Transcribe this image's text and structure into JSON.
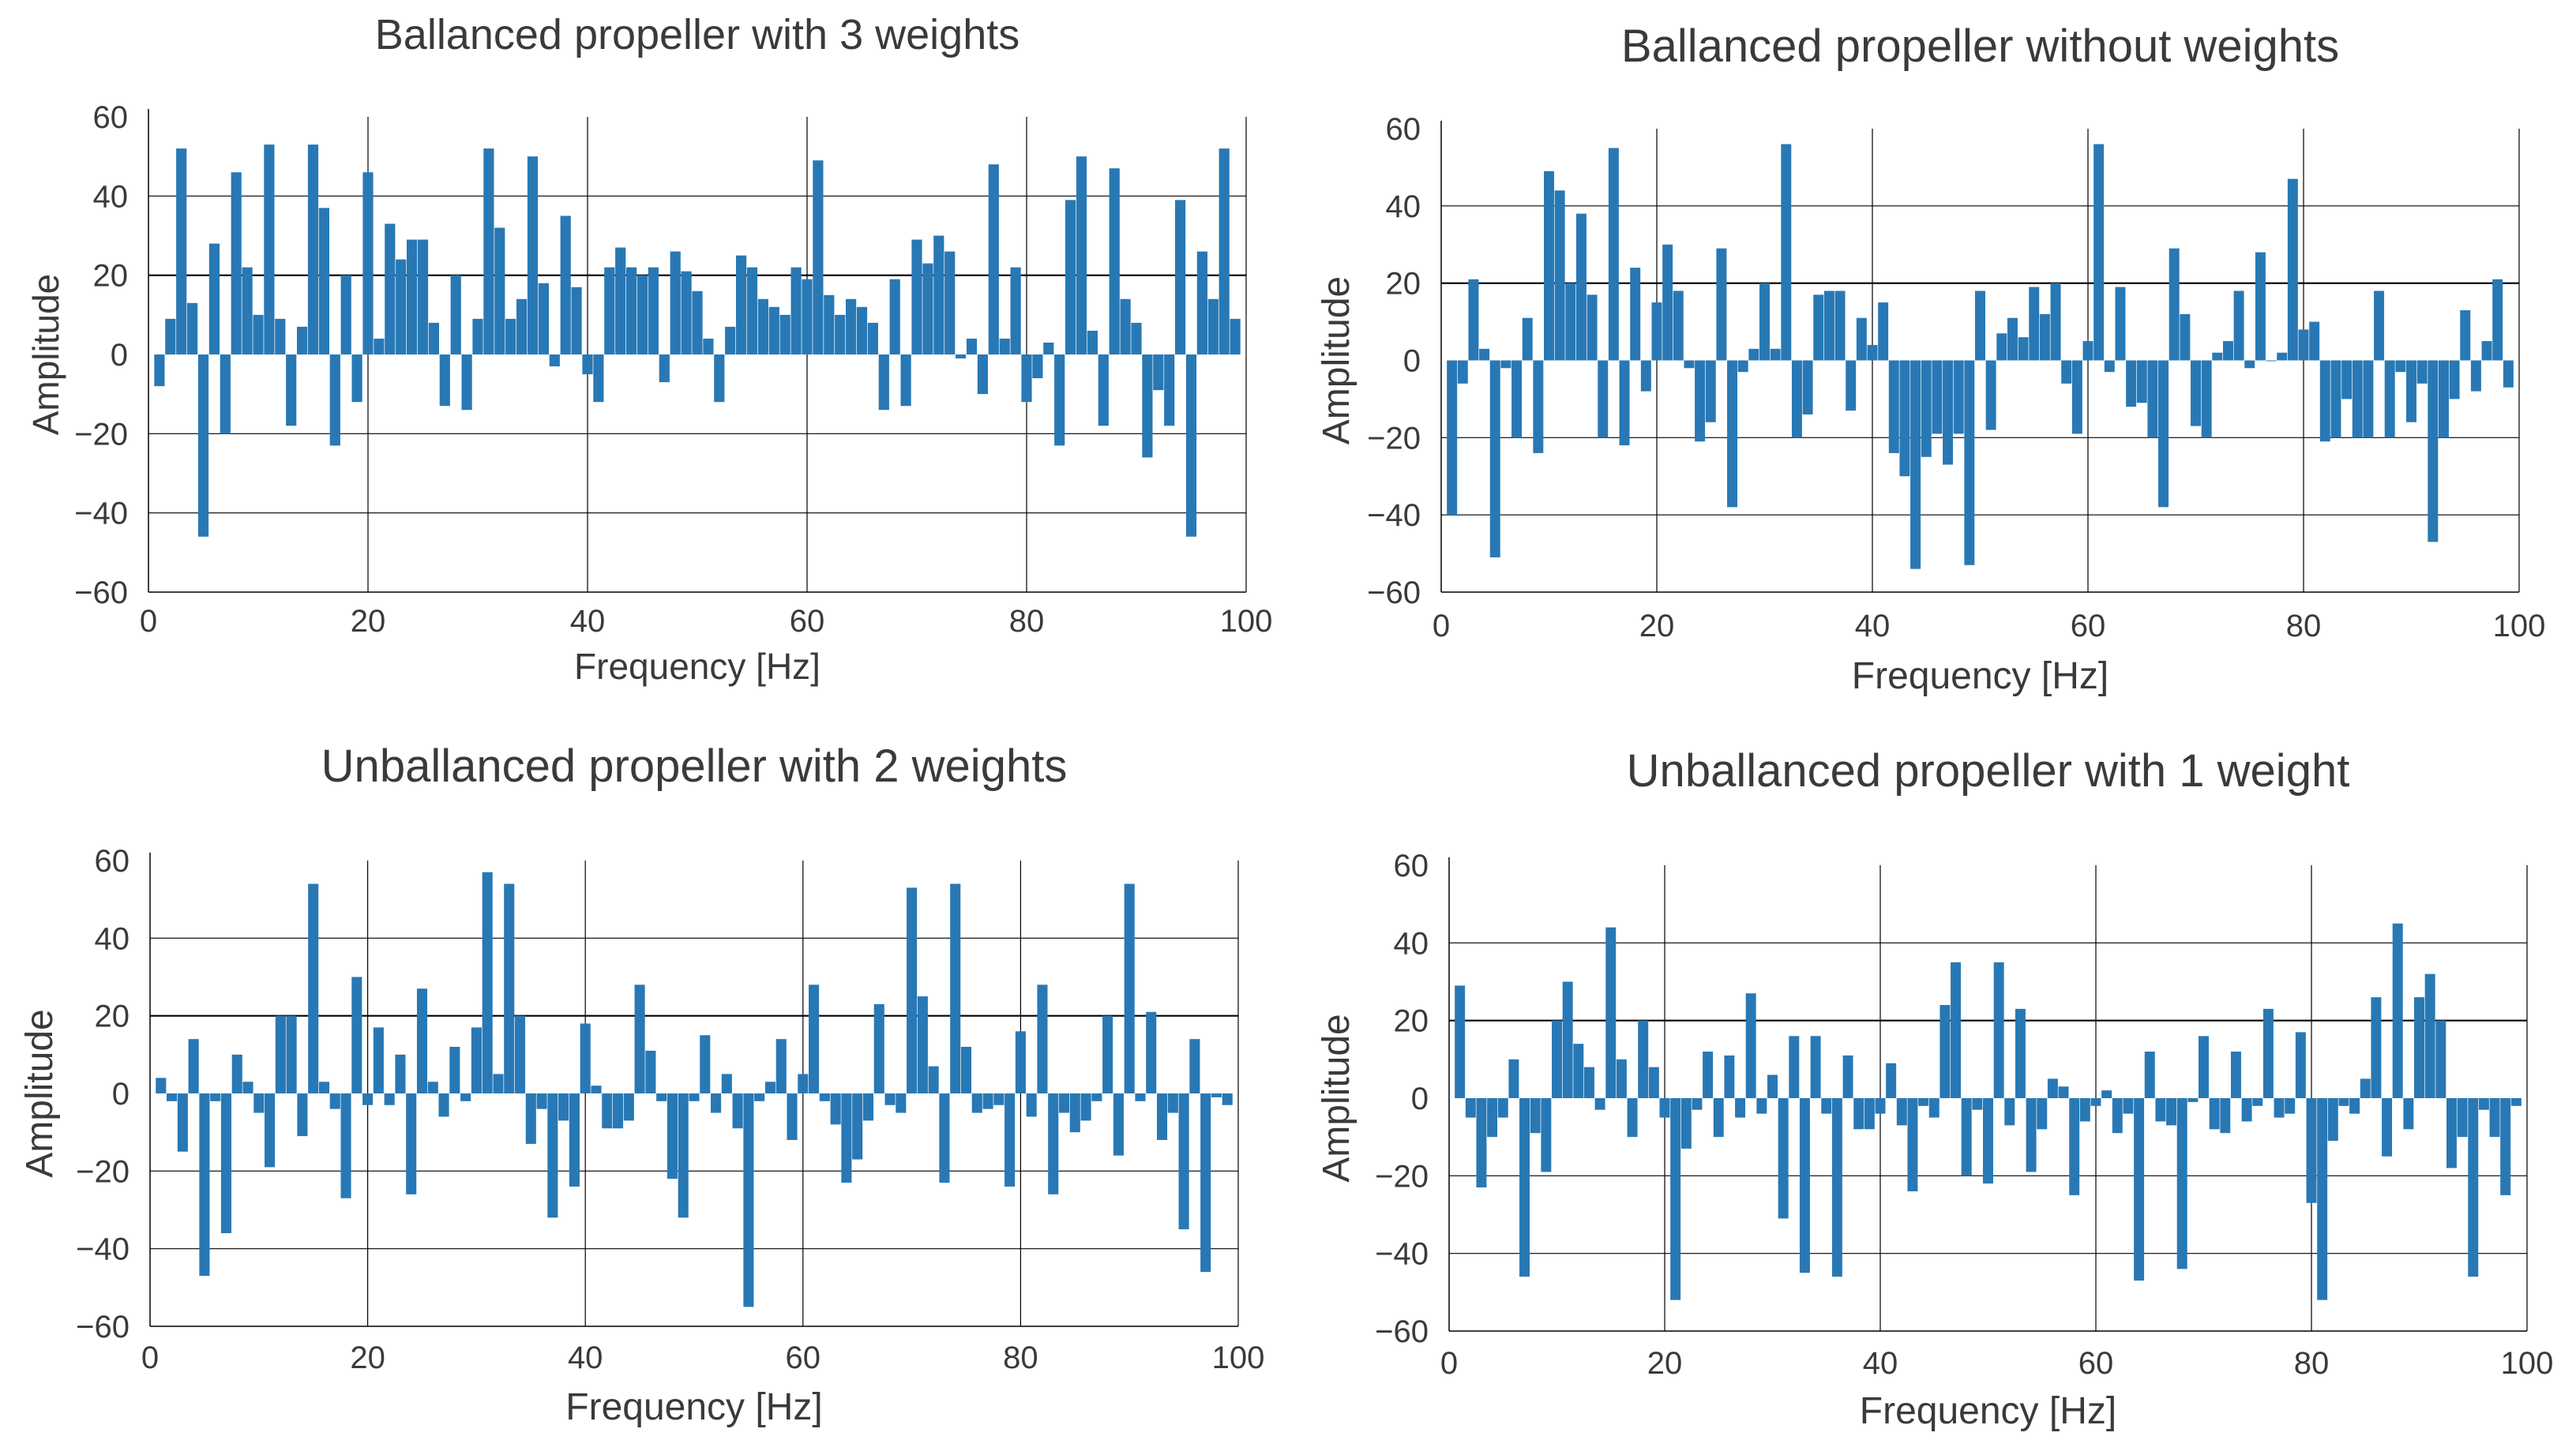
{
  "figure": {
    "bar_color": "#2878b5",
    "grid_color": "#000000",
    "text_color": "#3a3a3a"
  },
  "chart_data": [
    {
      "type": "bar",
      "title": "Ballanced propeller with 3 weights",
      "xlabel": "Frequency [Hz]",
      "ylabel": "Amplitude",
      "xlim": [
        0,
        100
      ],
      "ylim": [
        -60,
        60
      ],
      "xticks": [
        0,
        20,
        40,
        60,
        80,
        100
      ],
      "yticks": [
        -60,
        -40,
        -20,
        0,
        20,
        40,
        60
      ],
      "grid": "x and y (sparse)",
      "x": [
        1,
        2,
        3,
        4,
        5,
        6,
        7,
        8,
        9,
        10,
        11,
        12,
        13,
        14,
        15,
        16,
        17,
        18,
        19,
        20,
        21,
        22,
        23,
        24,
        25,
        26,
        27,
        28,
        29,
        30,
        31,
        32,
        33,
        34,
        35,
        36,
        37,
        38,
        39,
        40,
        41,
        42,
        43,
        44,
        45,
        46,
        47,
        48,
        49,
        50,
        51,
        52,
        53,
        54,
        55,
        56,
        57,
        58,
        59,
        60,
        61,
        62,
        63,
        64,
        65,
        66,
        67,
        68,
        69,
        70,
        71,
        72,
        73,
        74,
        75,
        76,
        77,
        78,
        79,
        80,
        81,
        82,
        83,
        84,
        85,
        86,
        87,
        88,
        89,
        90,
        91,
        92,
        93,
        94,
        95,
        96,
        97,
        98,
        99
      ],
      "values": [
        -8,
        9,
        52,
        13,
        -46,
        28,
        -20,
        46,
        22,
        10,
        53,
        9,
        -18,
        7,
        53,
        37,
        -23,
        20,
        -12,
        46,
        4,
        33,
        24,
        29,
        29,
        8,
        -13,
        20,
        -14,
        9,
        52,
        32,
        9,
        14,
        50,
        18,
        -3,
        35,
        17,
        -5,
        -12,
        22,
        27,
        22,
        20,
        22,
        -7,
        26,
        21,
        16,
        4,
        -12,
        7,
        25,
        22,
        14,
        12,
        10,
        22,
        19,
        49,
        15,
        10,
        14,
        12,
        8,
        -14,
        19,
        -13,
        29,
        23,
        30,
        26,
        -1,
        4,
        -10,
        48,
        4,
        22,
        -12,
        -6,
        3,
        -23,
        39,
        50,
        6,
        -18,
        47,
        14,
        8,
        -26,
        -9,
        -18,
        39,
        -46,
        26,
        14,
        52,
        9
      ]
    },
    {
      "type": "bar",
      "title": "Ballanced propeller without weights",
      "xlabel": "Frequency [Hz]",
      "ylabel": "Amplitude",
      "xlim": [
        0,
        100
      ],
      "ylim": [
        -60,
        60
      ],
      "xticks": [
        0,
        20,
        40,
        60,
        80,
        100
      ],
      "yticks": [
        -60,
        -40,
        -20,
        0,
        20,
        40,
        60
      ],
      "grid": "x and y (sparse)",
      "x": [
        1,
        2,
        3,
        4,
        5,
        6,
        7,
        8,
        9,
        10,
        11,
        12,
        13,
        14,
        15,
        16,
        17,
        18,
        19,
        20,
        21,
        22,
        23,
        24,
        25,
        26,
        27,
        28,
        29,
        30,
        31,
        32,
        33,
        34,
        35,
        36,
        37,
        38,
        39,
        40,
        41,
        42,
        43,
        44,
        45,
        46,
        47,
        48,
        49,
        50,
        51,
        52,
        53,
        54,
        55,
        56,
        57,
        58,
        59,
        60,
        61,
        62,
        63,
        64,
        65,
        66,
        67,
        68,
        69,
        70,
        71,
        72,
        73,
        74,
        75,
        76,
        77,
        78,
        79,
        80,
        81,
        82,
        83,
        84,
        85,
        86,
        87,
        88,
        89,
        90,
        91,
        92,
        93,
        94,
        95,
        96,
        97,
        98,
        99
      ],
      "values": [
        -40,
        -6,
        21,
        3,
        -51,
        -2,
        -20,
        11,
        -24,
        49,
        44,
        20,
        38,
        17,
        -20,
        55,
        -22,
        24,
        -8,
        15,
        30,
        18,
        -2,
        -21,
        -16,
        29,
        -38,
        -3,
        3,
        20,
        3,
        56,
        -20,
        -14,
        17,
        18,
        18,
        -13,
        11,
        4,
        15,
        -24,
        -30,
        -54,
        -25,
        -19,
        -27,
        -19,
        -53,
        18,
        -18,
        7,
        11,
        6,
        19,
        12,
        20,
        -6,
        -19,
        5,
        56,
        -3,
        19,
        -12,
        -11,
        -20,
        -38,
        29,
        12,
        -17,
        -20,
        2,
        5,
        18,
        -2,
        28,
        0,
        2,
        47,
        8,
        10,
        -21,
        -20,
        -10,
        -20,
        -20,
        18,
        -20,
        -3,
        -16,
        -6,
        -47,
        -20,
        -10,
        13,
        -8,
        5,
        21,
        -7
      ]
    },
    {
      "type": "bar",
      "title": "Unballanced propeller with 2 weights",
      "xlabel": "Frequency [Hz]",
      "ylabel": "Amplitude",
      "xlim": [
        0,
        100
      ],
      "ylim": [
        -60,
        60
      ],
      "xticks": [
        0,
        20,
        40,
        60,
        80,
        100
      ],
      "yticks": [
        -60,
        -40,
        -20,
        0,
        20,
        40,
        60
      ],
      "grid": "x and y (sparse)",
      "x": [
        1,
        2,
        3,
        4,
        5,
        6,
        7,
        8,
        9,
        10,
        11,
        12,
        13,
        14,
        15,
        16,
        17,
        18,
        19,
        20,
        21,
        22,
        23,
        24,
        25,
        26,
        27,
        28,
        29,
        30,
        31,
        32,
        33,
        34,
        35,
        36,
        37,
        38,
        39,
        40,
        41,
        42,
        43,
        44,
        45,
        46,
        47,
        48,
        49,
        50,
        51,
        52,
        53,
        54,
        55,
        56,
        57,
        58,
        59,
        60,
        61,
        62,
        63,
        64,
        65,
        66,
        67,
        68,
        69,
        70,
        71,
        72,
        73,
        74,
        75,
        76,
        77,
        78,
        79,
        80,
        81,
        82,
        83,
        84,
        85,
        86,
        87,
        88,
        89,
        90,
        91,
        92,
        93,
        94,
        95,
        96,
        97,
        98,
        99
      ],
      "values": [
        4,
        -2,
        -15,
        14,
        -47,
        -2,
        -36,
        10,
        3,
        -5,
        -19,
        20,
        20,
        -11,
        54,
        3,
        -4,
        -27,
        30,
        -3,
        17,
        -3,
        10,
        -26,
        27,
        3,
        -6,
        12,
        -2,
        17,
        57,
        5,
        54,
        20,
        -13,
        -4,
        -32,
        -7,
        -24,
        18,
        2,
        -9,
        -9,
        -7,
        28,
        11,
        -2,
        -22,
        -32,
        -2,
        15,
        -5,
        5,
        -9,
        -55,
        -2,
        3,
        14,
        -12,
        5,
        28,
        -2,
        -8,
        -23,
        -17,
        -7,
        23,
        -3,
        -5,
        53,
        25,
        7,
        -23,
        54,
        12,
        -5,
        -4,
        -3,
        -24,
        16,
        -6,
        28,
        -26,
        -5,
        -10,
        -7,
        -2,
        20,
        -16,
        54,
        -2,
        21,
        -12,
        -5,
        -35,
        14,
        -46,
        -1,
        -3
      ]
    },
    {
      "type": "bar",
      "title": "Unballanced propeller with 1 weight",
      "xlabel": "Frequency [Hz]",
      "ylabel": "Amplitude",
      "xlim": [
        0,
        100
      ],
      "ylim": [
        -60,
        60
      ],
      "xticks": [
        0,
        20,
        40,
        60,
        80,
        100
      ],
      "yticks": [
        -60,
        -40,
        -20,
        0,
        20,
        40,
        60
      ],
      "grid": "x and y (sparse)",
      "x": [
        1,
        2,
        3,
        4,
        5,
        6,
        7,
        8,
        9,
        10,
        11,
        12,
        13,
        14,
        15,
        16,
        17,
        18,
        19,
        20,
        21,
        22,
        23,
        24,
        25,
        26,
        27,
        28,
        29,
        30,
        31,
        32,
        33,
        34,
        35,
        36,
        37,
        38,
        39,
        40,
        41,
        42,
        43,
        44,
        45,
        46,
        47,
        48,
        49,
        50,
        51,
        52,
        53,
        54,
        55,
        56,
        57,
        58,
        59,
        60,
        61,
        62,
        63,
        64,
        65,
        66,
        67,
        68,
        69,
        70,
        71,
        72,
        73,
        74,
        75,
        76,
        77,
        78,
        79,
        80,
        81,
        82,
        83,
        84,
        85,
        86,
        87,
        88,
        89,
        90,
        91,
        92,
        93,
        94,
        95,
        96,
        97,
        98,
        99
      ],
      "values": [
        29,
        -5,
        -23,
        -10,
        -5,
        10,
        -46,
        -9,
        -19,
        20,
        30,
        14,
        8,
        -3,
        44,
        10,
        -10,
        20,
        8,
        -5,
        -52,
        -13,
        -3,
        12,
        -10,
        11,
        -5,
        27,
        -4,
        6,
        -31,
        16,
        -45,
        16,
        -4,
        -46,
        11,
        -8,
        -8,
        -4,
        9,
        -7,
        -24,
        -2,
        -5,
        24,
        35,
        -20,
        -3,
        -22,
        35,
        -7,
        23,
        -19,
        -8,
        5,
        3,
        -25,
        -6,
        -2,
        2,
        -9,
        -4,
        -47,
        12,
        -6,
        -7,
        -44,
        -1,
        16,
        -8,
        -9,
        12,
        -6,
        -2,
        23,
        -5,
        -4,
        17,
        -27,
        -52,
        -11,
        -2,
        -4,
        5,
        26,
        -15,
        45,
        -8,
        26,
        32,
        20,
        -18,
        -10,
        -46,
        -3,
        -10,
        -25,
        -2
      ]
    }
  ]
}
